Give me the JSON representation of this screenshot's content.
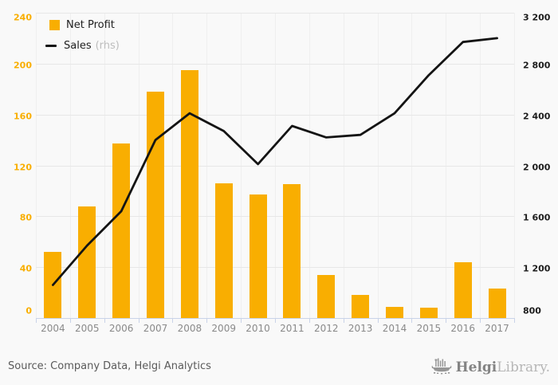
{
  "chart_data": {
    "type": "bar",
    "categories": [
      "2004",
      "2005",
      "2006",
      "2007",
      "2008",
      "2009",
      "2010",
      "2011",
      "2012",
      "2013",
      "2014",
      "2015",
      "2016",
      "2017"
    ],
    "series": [
      {
        "name": "Net Profit",
        "type": "bar",
        "axis": "left",
        "color": "#f9ae01",
        "values": [
          52,
          88,
          137,
          178,
          195,
          106,
          97,
          105,
          34,
          18,
          9,
          8,
          44,
          23
        ]
      },
      {
        "name": "Sales",
        "type": "line",
        "axis": "right",
        "axis_note": "(rhs)",
        "color": "#141414",
        "values": [
          1060,
          1370,
          1640,
          2200,
          2410,
          2270,
          2010,
          2310,
          2220,
          2240,
          2410,
          2710,
          2970,
          3000
        ]
      }
    ],
    "left_axis": {
      "min": 0,
      "max": 240,
      "step": 40,
      "tick_labels": [
        "240",
        "200",
        "160",
        "120",
        "80",
        "40",
        "0"
      ]
    },
    "right_axis": {
      "min": 800,
      "max": 3200,
      "step": 400,
      "tick_labels": [
        "3 200",
        "2 800",
        "2 400",
        "2 000",
        "1 600",
        "1 200",
        "800"
      ]
    },
    "grid": true,
    "legend_position": "top-left",
    "title": "",
    "xlabel": "",
    "ylabel": ""
  },
  "colors": {
    "background": "#f9f9f9",
    "bar": "#f9ae01",
    "line": "#141414",
    "grid": "#e7e7e7",
    "axis": "#c9d3e8",
    "left_tick_text": "#f9ae01",
    "right_tick_text": "#1d1d1d",
    "x_tick_text": "#8a8a8a"
  },
  "footer": {
    "source": "Source: Company Data, Helgi Analytics",
    "logo_primary": "Helgi",
    "logo_secondary": "Library."
  }
}
